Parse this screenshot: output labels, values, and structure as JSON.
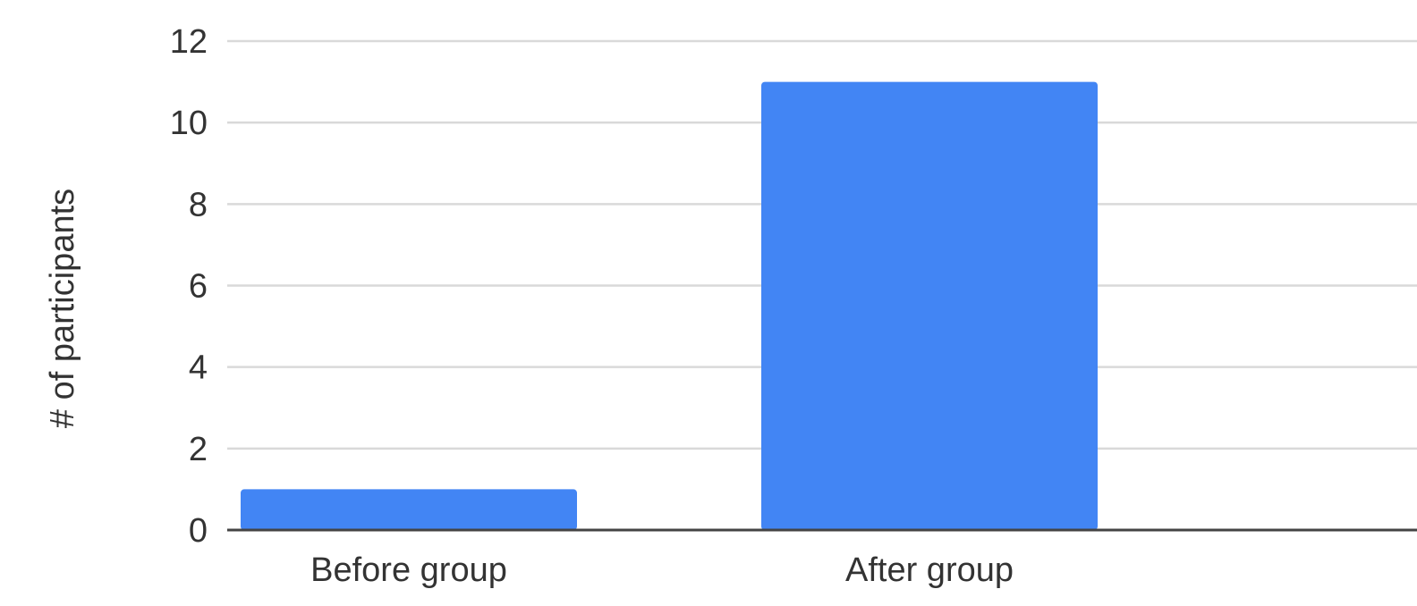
{
  "chart_data": {
    "type": "bar",
    "title": "",
    "xlabel": "",
    "ylabel": "# of participants",
    "categories": [
      "Before group",
      "After group"
    ],
    "values": [
      1,
      11
    ],
    "ylim": [
      0,
      12
    ],
    "yticks": [
      "0",
      "2",
      "4",
      "6",
      "8",
      "10",
      "12"
    ],
    "grid": true,
    "legend": "none",
    "colors": {
      "bar": "#4285f4",
      "grid": "#d9d9d9",
      "axis": "#444444",
      "text": "#333333"
    }
  }
}
